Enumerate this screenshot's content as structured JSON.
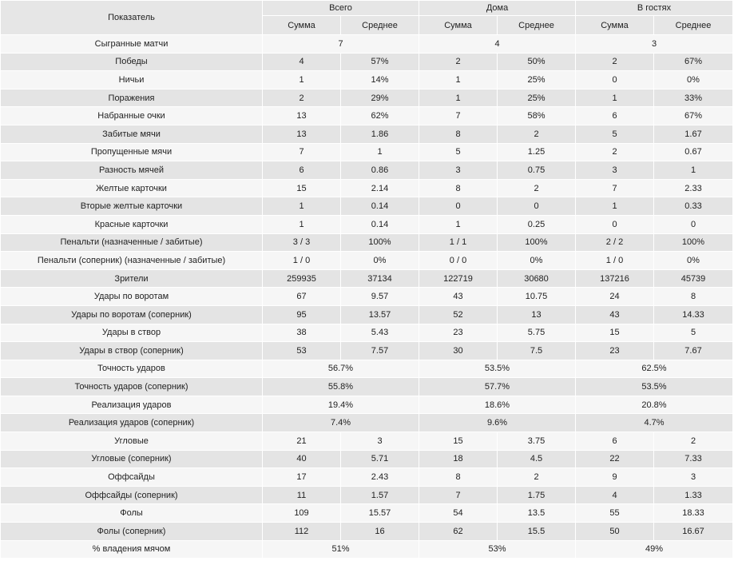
{
  "header": {
    "indicator_label": "Показатель",
    "groups": [
      "Всего",
      "Дома",
      "В гостях"
    ],
    "sum_label": "Сумма",
    "avg_label": "Среднее"
  },
  "rows": [
    {
      "label": "Сыгранные матчи",
      "merged": true,
      "values": [
        "7",
        "4",
        "3"
      ]
    },
    {
      "label": "Победы",
      "merged": false,
      "values": [
        "4",
        "57%",
        "2",
        "50%",
        "2",
        "67%"
      ]
    },
    {
      "label": "Ничьи",
      "merged": false,
      "values": [
        "1",
        "14%",
        "1",
        "25%",
        "0",
        "0%"
      ]
    },
    {
      "label": "Поражения",
      "merged": false,
      "values": [
        "2",
        "29%",
        "1",
        "25%",
        "1",
        "33%"
      ]
    },
    {
      "label": "Набранные очки",
      "merged": false,
      "values": [
        "13",
        "62%",
        "7",
        "58%",
        "6",
        "67%"
      ]
    },
    {
      "label": "Забитые мячи",
      "merged": false,
      "values": [
        "13",
        "1.86",
        "8",
        "2",
        "5",
        "1.67"
      ]
    },
    {
      "label": "Пропущенные мячи",
      "merged": false,
      "values": [
        "7",
        "1",
        "5",
        "1.25",
        "2",
        "0.67"
      ]
    },
    {
      "label": "Разность мячей",
      "merged": false,
      "values": [
        "6",
        "0.86",
        "3",
        "0.75",
        "3",
        "1"
      ]
    },
    {
      "label": "Желтые карточки",
      "merged": false,
      "values": [
        "15",
        "2.14",
        "8",
        "2",
        "7",
        "2.33"
      ]
    },
    {
      "label": "Вторые желтые карточки",
      "merged": false,
      "values": [
        "1",
        "0.14",
        "0",
        "0",
        "1",
        "0.33"
      ]
    },
    {
      "label": "Красные карточки",
      "merged": false,
      "values": [
        "1",
        "0.14",
        "1",
        "0.25",
        "0",
        "0"
      ]
    },
    {
      "label": "Пенальти (назначенные / забитые)",
      "merged": false,
      "values": [
        "3 / 3",
        "100%",
        "1 / 1",
        "100%",
        "2 / 2",
        "100%"
      ]
    },
    {
      "label": "Пенальти (соперник) (назначенные / забитые)",
      "merged": false,
      "values": [
        "1 / 0",
        "0%",
        "0 / 0",
        "0%",
        "1 / 0",
        "0%"
      ]
    },
    {
      "label": "Зрители",
      "merged": false,
      "values": [
        "259935",
        "37134",
        "122719",
        "30680",
        "137216",
        "45739"
      ]
    },
    {
      "label": "Удары по воротам",
      "merged": false,
      "values": [
        "67",
        "9.57",
        "43",
        "10.75",
        "24",
        "8"
      ]
    },
    {
      "label": "Удары по воротам (соперник)",
      "merged": false,
      "values": [
        "95",
        "13.57",
        "52",
        "13",
        "43",
        "14.33"
      ]
    },
    {
      "label": "Удары в створ",
      "merged": false,
      "values": [
        "38",
        "5.43",
        "23",
        "5.75",
        "15",
        "5"
      ]
    },
    {
      "label": "Удары в створ (соперник)",
      "merged": false,
      "values": [
        "53",
        "7.57",
        "30",
        "7.5",
        "23",
        "7.67"
      ]
    },
    {
      "label": "Точность ударов",
      "merged": true,
      "values": [
        "56.7%",
        "53.5%",
        "62.5%"
      ]
    },
    {
      "label": "Точность ударов (соперник)",
      "merged": true,
      "values": [
        "55.8%",
        "57.7%",
        "53.5%"
      ]
    },
    {
      "label": "Реализация ударов",
      "merged": true,
      "values": [
        "19.4%",
        "18.6%",
        "20.8%"
      ]
    },
    {
      "label": "Реализация ударов (соперник)",
      "merged": true,
      "values": [
        "7.4%",
        "9.6%",
        "4.7%"
      ]
    },
    {
      "label": "Угловые",
      "merged": false,
      "values": [
        "21",
        "3",
        "15",
        "3.75",
        "6",
        "2"
      ]
    },
    {
      "label": "Угловые (соперник)",
      "merged": false,
      "values": [
        "40",
        "5.71",
        "18",
        "4.5",
        "22",
        "7.33"
      ]
    },
    {
      "label": "Оффсайды",
      "merged": false,
      "values": [
        "17",
        "2.43",
        "8",
        "2",
        "9",
        "3"
      ]
    },
    {
      "label": "Оффсайды (соперник)",
      "merged": false,
      "values": [
        "11",
        "1.57",
        "7",
        "1.75",
        "4",
        "1.33"
      ]
    },
    {
      "label": "Фолы",
      "merged": false,
      "values": [
        "109",
        "15.57",
        "54",
        "13.5",
        "55",
        "18.33"
      ]
    },
    {
      "label": "Фолы (соперник)",
      "merged": false,
      "values": [
        "112",
        "16",
        "62",
        "15.5",
        "50",
        "16.67"
      ]
    },
    {
      "label": "% владения мячом",
      "merged": true,
      "values": [
        "51%",
        "53%",
        "49%"
      ]
    }
  ]
}
